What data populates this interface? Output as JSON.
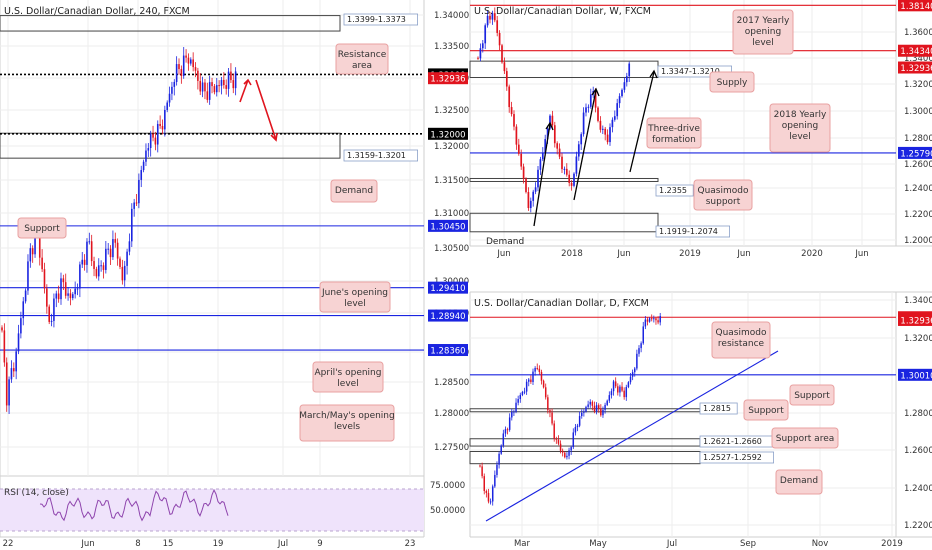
{
  "colors": {
    "bull": "#1a24e0",
    "bear": "#e0141e",
    "level_red": "#e0141e",
    "level_blue": "#1a24e0",
    "note_fill": "#f7d3d3",
    "note_stroke": "#e8a0a0",
    "box_stroke": "#333333",
    "rsi_fill": "#efe3fb",
    "rsi_line": "#8e44ad"
  },
  "chart_data": [
    {
      "type": "candlestick",
      "title": "U.S. Dollar/Canadian Dollar, 240, FXCM",
      "ylim": [
        1.265,
        1.343
      ],
      "ticks": [
        "1.34000",
        "1.33500",
        "1.33000",
        "1.32500",
        "1.32000",
        "1.31500",
        "1.31000",
        "1.30500",
        "1.30000",
        "1.29500",
        "1.29000",
        "1.28500",
        "1.28000",
        "1.27500"
      ],
      "xticks": [
        "22",
        "Jun",
        "8",
        "15",
        "19",
        "Jul",
        "9",
        "23"
      ],
      "levels": [
        {
          "label": "1.33000",
          "price": 1.33,
          "style": "dotted",
          "color": "#000000"
        },
        {
          "label": "1.32936",
          "price": 1.32936,
          "style": "none",
          "color": "#e0141e"
        },
        {
          "label": "1.32000",
          "price": 1.32,
          "style": "dotted",
          "color": "#000000"
        },
        {
          "label": "1.30450",
          "price": 1.3045,
          "style": "solid",
          "color": "#1a24e0"
        },
        {
          "label": "1.29410",
          "price": 1.2941,
          "style": "solid",
          "color": "#1a24e0"
        },
        {
          "label": "1.28940",
          "price": 1.2894,
          "style": "solid",
          "color": "#1a24e0"
        },
        {
          "label": "1.28360",
          "price": 1.2836,
          "style": "solid",
          "color": "#1a24e0"
        }
      ],
      "zones": [
        {
          "label": "1.3399-1.3373",
          "hi": 1.3399,
          "lo": 1.3373
        },
        {
          "label": "1.3159-1.3201",
          "hi": 1.3201,
          "lo": 1.3159
        }
      ],
      "annotations": [
        "Resistance area",
        "Demand",
        "Support",
        "June's opening level",
        "April's opening level",
        "March/May's opening levels"
      ],
      "indicator": {
        "name": "RSI (14, close)",
        "ticks": [
          "75.0000",
          "50.0000"
        ]
      }
    },
    {
      "type": "candlestick",
      "title": "U.S. Dollar/Canadian Dollar, W, FXCM",
      "ylim": [
        1.195,
        1.385
      ],
      "ticks": [
        "1.36000",
        "1.34000",
        "1.32000",
        "1.30000",
        "1.28000",
        "1.26000",
        "1.24000",
        "1.22000",
        "1.20000"
      ],
      "xticks": [
        "Jun",
        "2018",
        "Jun",
        "2019",
        "Jun",
        "2020",
        "Jun"
      ],
      "levels": [
        {
          "label": "1.38140",
          "price": 1.3814,
          "style": "solid",
          "color": "#e0141e"
        },
        {
          "label": "1.34340",
          "price": 1.3434,
          "style": "solid",
          "color": "#e0141e"
        },
        {
          "label": "1.32936",
          "price": 1.32936,
          "style": "none",
          "color": "#e0141e"
        },
        {
          "label": "1.25790",
          "price": 1.2579,
          "style": "solid",
          "color": "#1a24e0"
        }
      ],
      "zones": [
        {
          "label": "1.3347-1.3210",
          "hi": 1.3347,
          "lo": 1.321
        },
        {
          "label": "1.2355",
          "hi": 1.2365,
          "lo": 1.235
        },
        {
          "label": "1.1919-1.2074",
          "hi": 1.2074,
          "lo": 1.1919
        }
      ],
      "annotations": [
        "2017 Yearly opening level",
        "Supply",
        "2018 Yearly opening level",
        "Three-drive formation",
        "Quasimodo support",
        "Demand"
      ]
    },
    {
      "type": "candlestick",
      "title": "U.S. Dollar/Canadian Dollar, D, FXCM",
      "ylim": [
        1.225,
        1.345
      ],
      "ticks": [
        "1.34000",
        "1.32000",
        "1.30000",
        "1.28000",
        "1.26000",
        "1.24000",
        "1.22000"
      ],
      "xticks": [
        "Mar",
        "May",
        "Jul",
        "Sep",
        "Nov",
        "2019"
      ],
      "levels": [
        {
          "label": "1.33080",
          "price": 1.3308,
          "style": "solid",
          "color": "#e0141e"
        },
        {
          "label": "1.32936",
          "price": 1.32936,
          "style": "none",
          "color": "#e0141e"
        },
        {
          "label": "1.30010",
          "price": 1.3001,
          "style": "solid",
          "color": "#1a24e0"
        }
      ],
      "zones": [
        {
          "label": "1.2815",
          "hi": 1.282,
          "lo": 1.281
        },
        {
          "label": "1.2621-1.2660",
          "hi": 1.266,
          "lo": 1.2621
        },
        {
          "label": "1.2527-1.2592",
          "hi": 1.2592,
          "lo": 1.2527
        }
      ],
      "annotations": [
        "Quasimodo resistance",
        "Support",
        "Support",
        "Support area",
        "Demand"
      ]
    }
  ]
}
